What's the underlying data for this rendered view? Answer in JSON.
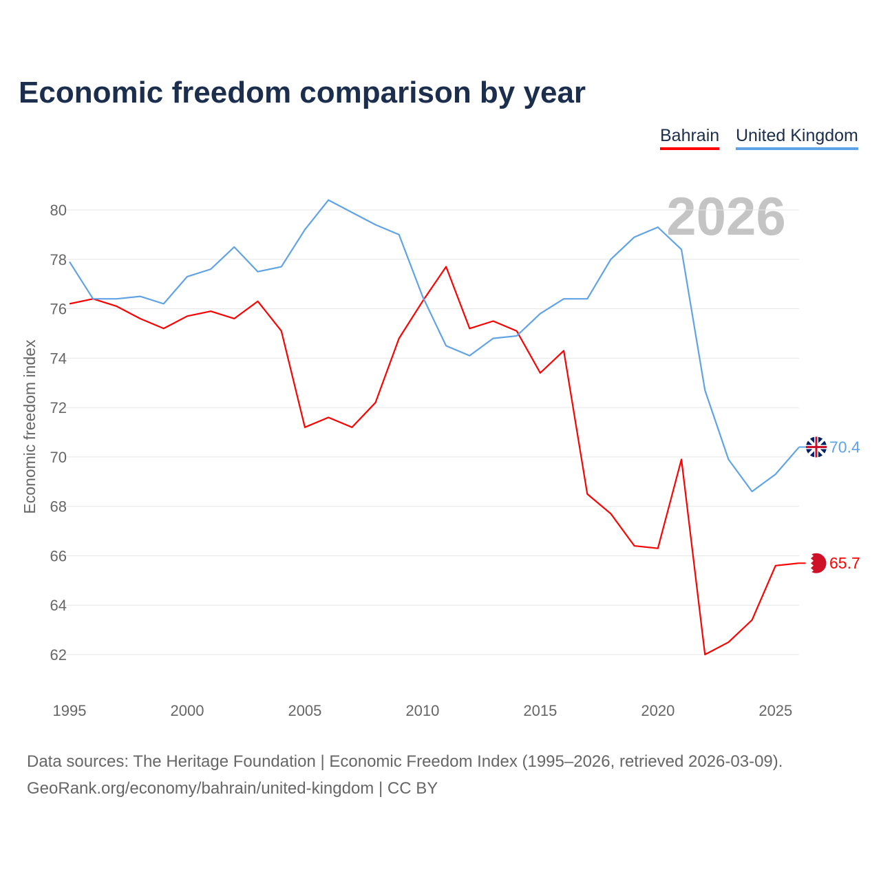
{
  "title": "Economic freedom comparison by year",
  "year_watermark": "2026",
  "source_line1": "Data sources: The Heritage Foundation | Economic Freedom Index (1995–2026, retrieved 2026-03-09).",
  "source_line2": "GeoRank.org/economy/bahrain/united-kingdom | CC BY",
  "chart_data": {
    "type": "line",
    "title": "Economic freedom comparison by year",
    "xlabel": "",
    "ylabel": "Economic freedom index",
    "xlim": [
      1995,
      2026
    ],
    "ylim": [
      61,
      81
    ],
    "xticks": [
      "1995",
      "2000",
      "2005",
      "2010",
      "2015",
      "2020",
      "2025"
    ],
    "yticks": [
      "62",
      "64",
      "66",
      "68",
      "70",
      "72",
      "74",
      "76",
      "78",
      "80"
    ],
    "grid": true,
    "legend_position": "top-right",
    "x": [
      1995,
      1996,
      1997,
      1998,
      1999,
      2000,
      2001,
      2002,
      2003,
      2004,
      2005,
      2006,
      2007,
      2008,
      2009,
      2010,
      2011,
      2012,
      2013,
      2014,
      2015,
      2016,
      2017,
      2018,
      2019,
      2020,
      2021,
      2022,
      2023,
      2024,
      2025,
      2026
    ],
    "series": [
      {
        "name": "Bahrain",
        "color": "#ff0000",
        "end_label": "65.7",
        "values": [
          76.2,
          76.4,
          76.1,
          75.6,
          75.2,
          75.7,
          75.9,
          75.6,
          76.3,
          75.1,
          71.2,
          71.6,
          71.2,
          72.2,
          74.8,
          76.3,
          77.7,
          75.2,
          75.5,
          75.1,
          73.4,
          74.3,
          68.5,
          67.7,
          66.4,
          66.3,
          69.9,
          62.0,
          62.5,
          63.4,
          65.6,
          65.7
        ]
      },
      {
        "name": "United Kingdom",
        "color": "#5fa3e6",
        "end_label": "70.4",
        "values": [
          77.9,
          76.4,
          76.4,
          76.5,
          76.2,
          77.3,
          77.6,
          78.5,
          77.5,
          77.7,
          79.2,
          80.4,
          79.9,
          79.4,
          79.0,
          76.5,
          74.5,
          74.1,
          74.8,
          74.9,
          75.8,
          76.4,
          76.4,
          78.0,
          78.9,
          79.3,
          78.4,
          72.7,
          69.9,
          68.6,
          69.3,
          70.4
        ]
      }
    ]
  }
}
